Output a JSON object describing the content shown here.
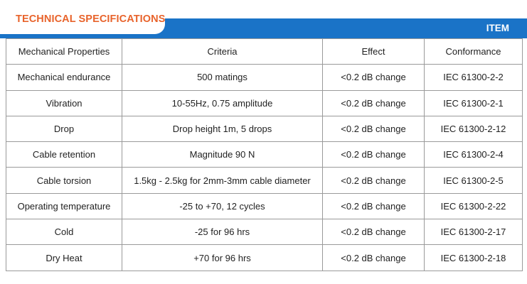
{
  "header": {
    "title": "TECHNICAL SPECIFICATIONS",
    "item_label": "ITEM"
  },
  "colors": {
    "accent_bar": "#1a73c7",
    "title_orange": "#e8632b",
    "border": "#9a9a9a"
  },
  "table": {
    "columns": [
      "Mechanical Properties",
      "Criteria",
      "Effect",
      "Conformance"
    ],
    "rows": [
      [
        "Mechanical endurance",
        "500 matings",
        "<0.2 dB change",
        "IEC 61300-2-2"
      ],
      [
        "Vibration",
        "10-55Hz, 0.75 amplitude",
        "<0.2 dB change",
        "IEC 61300-2-1"
      ],
      [
        "Drop",
        "Drop height 1m, 5 drops",
        "<0.2 dB change",
        "IEC 61300-2-12"
      ],
      [
        "Cable retention",
        "Magnitude 90 N",
        "<0.2 dB change",
        "IEC 61300-2-4"
      ],
      [
        "Cable torsion",
        "1.5kg - 2.5kg for 2mm-3mm cable diameter",
        "<0.2 dB change",
        "IEC 61300-2-5"
      ],
      [
        "Operating temperature",
        "-25 to +70, 12 cycles",
        "<0.2 dB change",
        "IEC 61300-2-22"
      ],
      [
        "Cold",
        "-25 for 96 hrs",
        "<0.2 dB change",
        "IEC 61300-2-17"
      ],
      [
        "Dry Heat",
        "+70 for 96 hrs",
        "<0.2 dB change",
        "IEC 61300-2-18"
      ]
    ]
  }
}
